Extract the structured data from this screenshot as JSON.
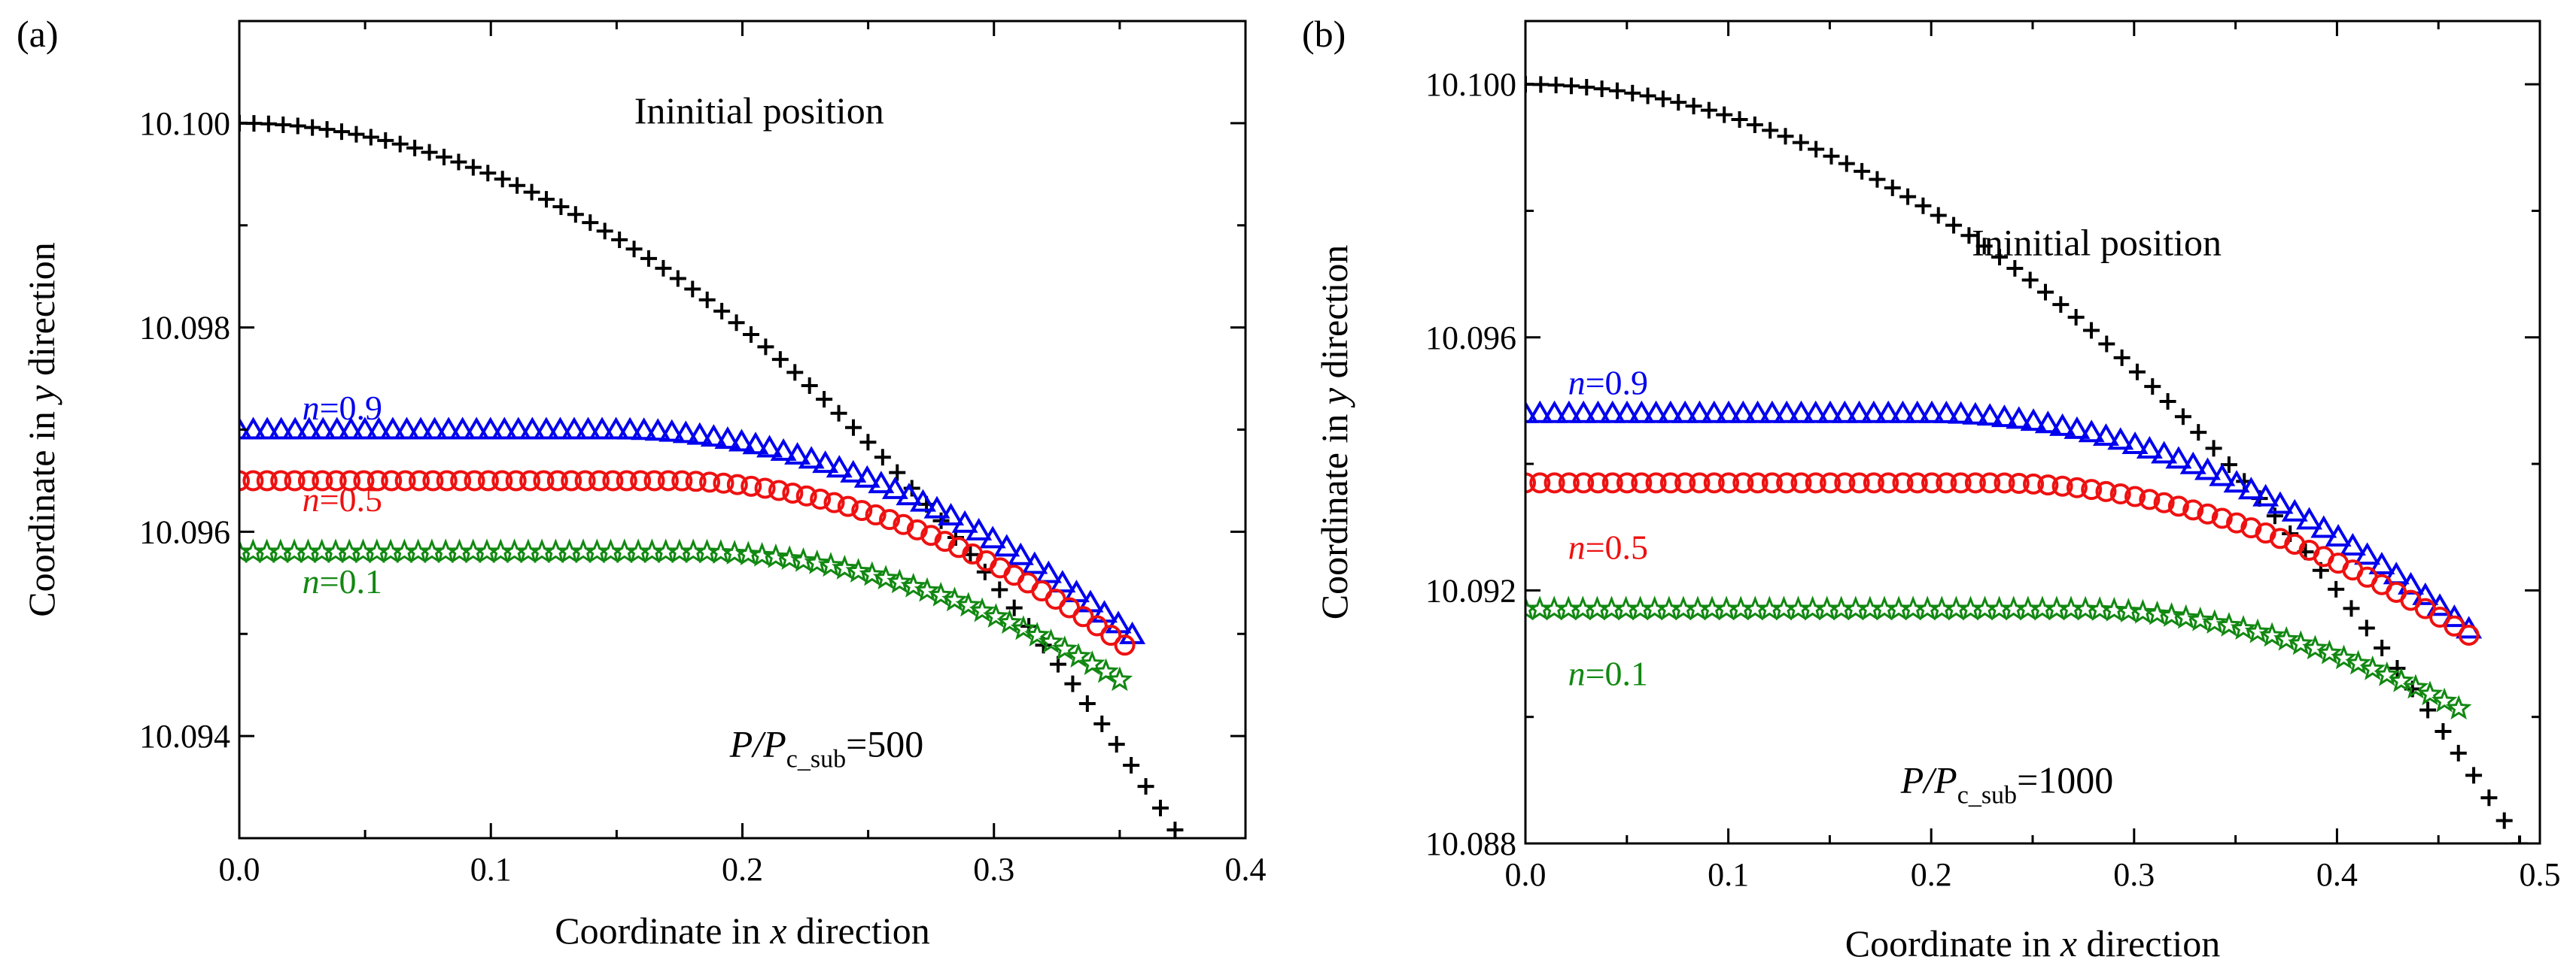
{
  "chart_data": [
    {
      "panel_label": "(a)",
      "type": "scatter",
      "xlabel": "Coordinate in x direction",
      "ylabel": "Coordinate in y direction",
      "xlabel_parts": [
        "Coordinate in ",
        "x",
        " direction"
      ],
      "ylabel_parts": [
        "Coordinate in ",
        "y",
        " direction"
      ],
      "xlim": [
        0,
        0.4
      ],
      "ylim": [
        10.093,
        10.101
      ],
      "xticks": [
        "0.0",
        "0.1",
        "0.2",
        "0.3",
        "0.4"
      ],
      "xtick_values": [
        0,
        0.1,
        0.2,
        0.3,
        0.4
      ],
      "yticks": [
        "10.094",
        "10.096",
        "10.098",
        "10.100"
      ],
      "ytick_values": [
        10.094,
        10.096,
        10.098,
        10.1
      ],
      "annotation_initial": "Ininitial position",
      "annotation_ratio": {
        "prefix": "P/P",
        "sub": "c_sub",
        "suffix": "=500"
      },
      "series": [
        {
          "name": "Ininitial position",
          "marker": "plus",
          "color": "#000000",
          "points": 65,
          "y0": 10.1,
          "k": 0.05,
          "x_max": 0.372
        },
        {
          "name": "n=0.9",
          "label_italic": "n",
          "label_rest": "=0.9",
          "marker": "triangle",
          "color": "#0000ee",
          "points": 65,
          "y0": 10.097,
          "x_flat": 0.15,
          "k": 0.0477,
          "x_max": 0.355
        },
        {
          "name": "n=0.5",
          "label_italic": "n",
          "label_rest": "=0.5",
          "marker": "circle",
          "color": "#ee1111",
          "points": 65,
          "y0": 10.0965,
          "x_flat": 0.17,
          "k": 0.0486,
          "x_max": 0.352
        },
        {
          "name": "n=0.1",
          "label_italic": "n",
          "label_rest": "=0.1",
          "marker": "star",
          "color": "#118811",
          "points": 65,
          "y0": 10.0958,
          "x_flat": 0.18,
          "k": 0.0433,
          "x_max": 0.35
        }
      ]
    },
    {
      "panel_label": "(b)",
      "type": "scatter",
      "xlabel": "Coordinate in x direction",
      "ylabel": "Coordinate in y direction",
      "xlabel_parts": [
        "Coordinate in ",
        "x",
        " direction"
      ],
      "ylabel_parts": [
        "Coordinate in ",
        "y",
        " direction"
      ],
      "xlim": [
        0,
        0.5
      ],
      "ylim": [
        10.088,
        10.101
      ],
      "xticks": [
        "0.0",
        "0.1",
        "0.2",
        "0.3",
        "0.4",
        "0.5"
      ],
      "xtick_values": [
        0,
        0.1,
        0.2,
        0.3,
        0.4,
        0.5
      ],
      "yticks": [
        "10.088",
        "10.092",
        "10.096",
        "10.100"
      ],
      "ytick_values": [
        10.088,
        10.092,
        10.096,
        10.1
      ],
      "annotation_initial": "Ininitial position",
      "annotation_ratio": {
        "prefix": "P/P",
        "sub": "c_sub",
        "suffix": "=1000"
      },
      "series": [
        {
          "name": "Ininitial position",
          "marker": "plus",
          "color": "#000000",
          "points": 66,
          "y0": 10.1,
          "k": 0.05,
          "x_max": 0.49
        },
        {
          "name": "n=0.9",
          "label_italic": "n",
          "label_rest": "=0.9",
          "marker": "triangle",
          "color": "#0000ee",
          "points": 66,
          "y0": 10.0948,
          "x_flat": 0.2,
          "k": 0.0485,
          "x_max": 0.465
        },
        {
          "name": "n=0.5",
          "label_italic": "n",
          "label_rest": "=0.5",
          "marker": "circle",
          "color": "#ee1111",
          "points": 66,
          "y0": 10.0937,
          "x_flat": 0.23,
          "k": 0.0436,
          "x_max": 0.465
        },
        {
          "name": "n=0.1",
          "label_italic": "n",
          "label_rest": "=0.1",
          "marker": "star",
          "color": "#118811",
          "points": 66,
          "y0": 10.0917,
          "x_flat": 0.27,
          "k": 0.0434,
          "x_max": 0.46
        }
      ]
    }
  ]
}
